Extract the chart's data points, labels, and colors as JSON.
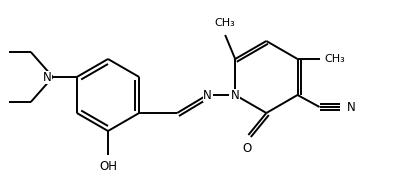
{
  "bg_color": "#ffffff",
  "line_color": "#000000",
  "line_width": 1.4,
  "font_size": 8.5,
  "font_color": "#000000",
  "xlim": [
    0,
    4.05
  ],
  "ylim": [
    0,
    1.85
  ]
}
